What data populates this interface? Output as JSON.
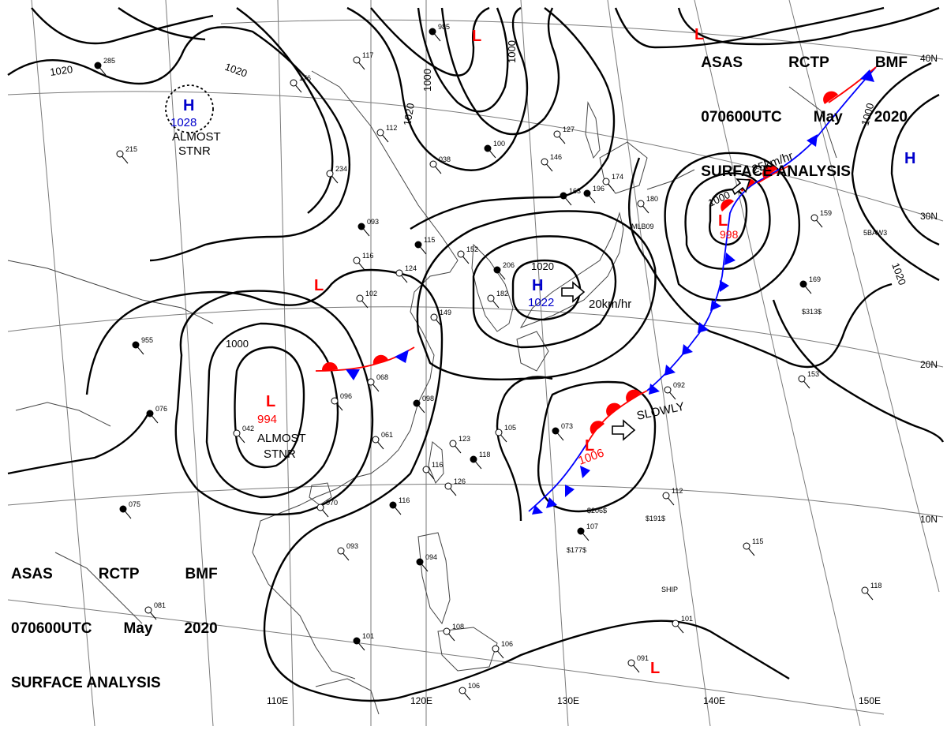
{
  "header": {
    "agency": "ASAS",
    "station": "RCTP",
    "code": "BMF",
    "datetime": "070600UTC",
    "month": "May",
    "year": "2020",
    "title": "SURFACE ANALYSIS"
  },
  "longitude_labels": [
    "110E",
    "120E",
    "130E",
    "140E",
    "150E"
  ],
  "latitude_labels": [
    "40N",
    "30N",
    "20N",
    "10N"
  ],
  "isobar_labels": [
    "1020",
    "1020",
    "1000",
    "1000",
    "1020",
    "1000",
    "1000",
    "1000",
    "1020",
    "1020"
  ],
  "pressure_systems": [
    {
      "type": "H",
      "value": "1028",
      "note_line1": "ALMOST",
      "note_line2": "STNR",
      "color": "#0000cc"
    },
    {
      "type": "H",
      "value": "1022",
      "motion": "20km/hr",
      "color": "#0000cc"
    },
    {
      "type": "L",
      "value": "994",
      "note_line1": "ALMOST",
      "note_line2": "STNR",
      "color": "#ff0000"
    },
    {
      "type": "L",
      "value": "998",
      "motion": "25km/hr",
      "color": "#ff0000"
    },
    {
      "type": "L",
      "value": "1006",
      "motion": "SLOWLY",
      "color": "#ff0000"
    },
    {
      "type": "L",
      "value": "",
      "color": "#ff0000"
    },
    {
      "type": "L",
      "value": "",
      "color": "#ff0000"
    },
    {
      "type": "L",
      "value": "",
      "color": "#ff0000"
    },
    {
      "type": "L",
      "value": "",
      "color": "#ff0000"
    },
    {
      "type": "H",
      "value": "",
      "color": "#0000cc"
    }
  ],
  "station_plots": [
    "985",
    "117",
    "176",
    "285",
    "215",
    "234",
    "093",
    "116",
    "102",
    "115",
    "152",
    "124",
    "206",
    "182",
    "149",
    "100",
    "146",
    "127",
    "163",
    "174",
    "180",
    "955",
    "096",
    "068",
    "098",
    "061",
    "042",
    "076",
    "123",
    "116",
    "118",
    "126",
    "105",
    "073",
    "092",
    "153",
    "169",
    "159",
    "112",
    "107",
    "115",
    "118",
    "101",
    "091",
    "106",
    "094",
    "108",
    "081",
    "075",
    "070",
    "093",
    "116",
    "101",
    "106",
    "196",
    "038",
    "112"
  ],
  "station_extra_text": [
    "SHIP",
    "$191$",
    "$206$",
    "$177$",
    "MLB09",
    "5BAW3",
    "$313$"
  ],
  "colors": {
    "high": "#0000cc",
    "low": "#ff0000",
    "cold_front": "#0000ff",
    "warm_front": "#ff0000",
    "isobar": "#000000",
    "coast": "#444444",
    "grid": "#7a7a7a"
  }
}
